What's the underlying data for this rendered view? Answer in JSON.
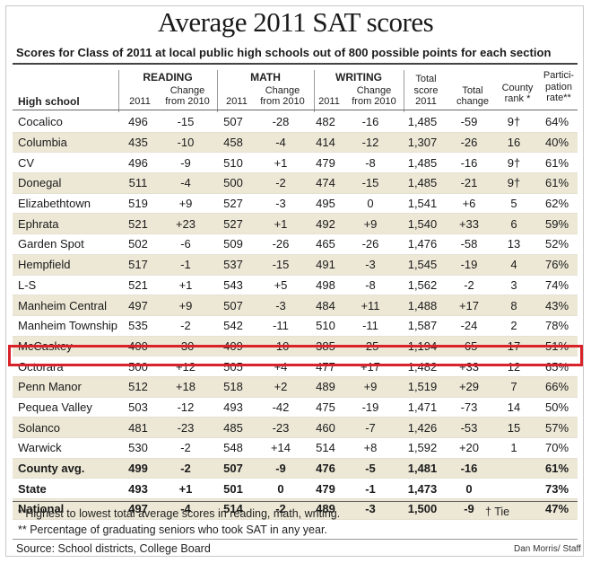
{
  "chart_data": {
    "type": "table",
    "title": "Average 2011 SAT scores",
    "subtitle": "Scores for Class of 2011 at local public high schools out of 800 possible points for each section",
    "headers": {
      "school": "High school",
      "reading": "READING",
      "math": "MATH",
      "writing": "WRITING",
      "year": "2011",
      "change_line1": "Change",
      "change_line2": "from 2010",
      "total_line1": "Total",
      "total_line2": "score",
      "total_line3": "2011",
      "tchange_line1": "Total",
      "tchange_line2": "change",
      "rank_line1": "County",
      "rank_line2": "rank *",
      "part_line1": "Partici-",
      "part_line2": "pation",
      "part_line3": "rate**"
    },
    "rows": [
      {
        "school": "Cocalico",
        "reading": "496",
        "reading_change": "-15",
        "math": "507",
        "math_change": "-28",
        "writing": "482",
        "writing_change": "-16",
        "total": "1,485",
        "total_change": "-59",
        "rank": "9†",
        "participation": "64%"
      },
      {
        "school": "Columbia",
        "reading": "435",
        "reading_change": "-10",
        "math": "458",
        "math_change": "-4",
        "writing": "414",
        "writing_change": "-12",
        "total": "1,307",
        "total_change": "-26",
        "rank": "16",
        "participation": "40%"
      },
      {
        "school": "CV",
        "reading": "496",
        "reading_change": "-9",
        "math": "510",
        "math_change": "+1",
        "writing": "479",
        "writing_change": "-8",
        "total": "1,485",
        "total_change": "-16",
        "rank": "9†",
        "participation": "61%"
      },
      {
        "school": "Donegal",
        "reading": "511",
        "reading_change": "-4",
        "math": "500",
        "math_change": "-2",
        "writing": "474",
        "writing_change": "-15",
        "total": "1,485",
        "total_change": "-21",
        "rank": "9†",
        "participation": "61%"
      },
      {
        "school": "Elizabethtown",
        "reading": "519",
        "reading_change": "+9",
        "math": "527",
        "math_change": "-3",
        "writing": "495",
        "writing_change": "0",
        "total": "1,541",
        "total_change": "+6",
        "rank": "5",
        "participation": "62%"
      },
      {
        "school": "Ephrata",
        "reading": "521",
        "reading_change": "+23",
        "math": "527",
        "math_change": "+1",
        "writing": "492",
        "writing_change": "+9",
        "total": "1,540",
        "total_change": "+33",
        "rank": "6",
        "participation": "59%"
      },
      {
        "school": "Garden Spot",
        "reading": "502",
        "reading_change": "-6",
        "math": "509",
        "math_change": "-26",
        "writing": "465",
        "writing_change": "-26",
        "total": "1,476",
        "total_change": "-58",
        "rank": "13",
        "participation": "52%"
      },
      {
        "school": "Hempfield",
        "reading": "517",
        "reading_change": "-1",
        "math": "537",
        "math_change": "-15",
        "writing": "491",
        "writing_change": "-3",
        "total": "1,545",
        "total_change": "-19",
        "rank": "4",
        "participation": "76%"
      },
      {
        "school": "L-S",
        "reading": "521",
        "reading_change": "+1",
        "math": "543",
        "math_change": "+5",
        "writing": "498",
        "writing_change": "-8",
        "total": "1,562",
        "total_change": "-2",
        "rank": "3",
        "participation": "74%"
      },
      {
        "school": "Manheim Central",
        "reading": "497",
        "reading_change": "+9",
        "math": "507",
        "math_change": "-3",
        "writing": "484",
        "writing_change": "+11",
        "total": "1,488",
        "total_change": "+17",
        "rank": "8",
        "participation": "43%"
      },
      {
        "school": "Manheim Township",
        "reading": "535",
        "reading_change": "-2",
        "math": "542",
        "math_change": "-11",
        "writing": "510",
        "writing_change": "-11",
        "total": "1,587",
        "total_change": "-24",
        "rank": "2",
        "participation": "78%"
      },
      {
        "school": "McCaskey",
        "reading": "400",
        "reading_change": "-30",
        "math": "409",
        "math_change": "-10",
        "writing": "385",
        "writing_change": "-25",
        "total": "1,194",
        "total_change": "-65",
        "rank": "17",
        "participation": "51%"
      },
      {
        "school": "Octorara",
        "reading": "500",
        "reading_change": "+12",
        "math": "505",
        "math_change": "+4",
        "writing": "477",
        "writing_change": "+17",
        "total": "1,482",
        "total_change": "+33",
        "rank": "12",
        "participation": "65%"
      },
      {
        "school": "Penn Manor",
        "reading": "512",
        "reading_change": "+18",
        "math": "518",
        "math_change": "+2",
        "writing": "489",
        "writing_change": "+9",
        "total": "1,519",
        "total_change": "+29",
        "rank": "7",
        "participation": "66%"
      },
      {
        "school": "Pequea Valley",
        "reading": "503",
        "reading_change": "-12",
        "math": "493",
        "math_change": "-42",
        "writing": "475",
        "writing_change": "-19",
        "total": "1,471",
        "total_change": "-73",
        "rank": "14",
        "participation": "50%"
      },
      {
        "school": "Solanco",
        "reading": "481",
        "reading_change": "-23",
        "math": "485",
        "math_change": "-23",
        "writing": "460",
        "writing_change": "-7",
        "total": "1,426",
        "total_change": "-53",
        "rank": "15",
        "participation": "57%"
      },
      {
        "school": "Warwick",
        "reading": "530",
        "reading_change": "-2",
        "math": "548",
        "math_change": "+14",
        "writing": "514",
        "writing_change": "+8",
        "total": "1,592",
        "total_change": "+20",
        "rank": "1",
        "participation": "70%"
      }
    ],
    "summary_rows": [
      {
        "school": "County avg.",
        "reading": "499",
        "reading_change": "-2",
        "math": "507",
        "math_change": "-9",
        "writing": "476",
        "writing_change": "-5",
        "total": "1,481",
        "total_change": "-16",
        "rank": "",
        "participation": "61%"
      },
      {
        "school": "State",
        "reading": "493",
        "reading_change": "+1",
        "math": "501",
        "math_change": "0",
        "writing": "479",
        "writing_change": "-1",
        "total": "1,473",
        "total_change": "0",
        "rank": "",
        "participation": "73%"
      },
      {
        "school": "National",
        "reading": "497",
        "reading_change": "-4",
        "math": "514",
        "math_change": "-2",
        "writing": "489",
        "writing_change": "-3",
        "total": "1,500",
        "total_change": "-9",
        "rank": "",
        "participation": "47%"
      }
    ],
    "highlighted_school": "Octorara",
    "highlight_color": "#d8232a",
    "shade_color": "#ede8d6"
  },
  "footnotes": {
    "rank_note": "* Highest to lowest total average scores in reading, math, writing.",
    "tie_note": "† Tie",
    "participation_note": "** Percentage of graduating seniors who took SAT in any year.",
    "source": "Source: School districts, College Board",
    "credit": "Dan Morris/ Staff"
  }
}
